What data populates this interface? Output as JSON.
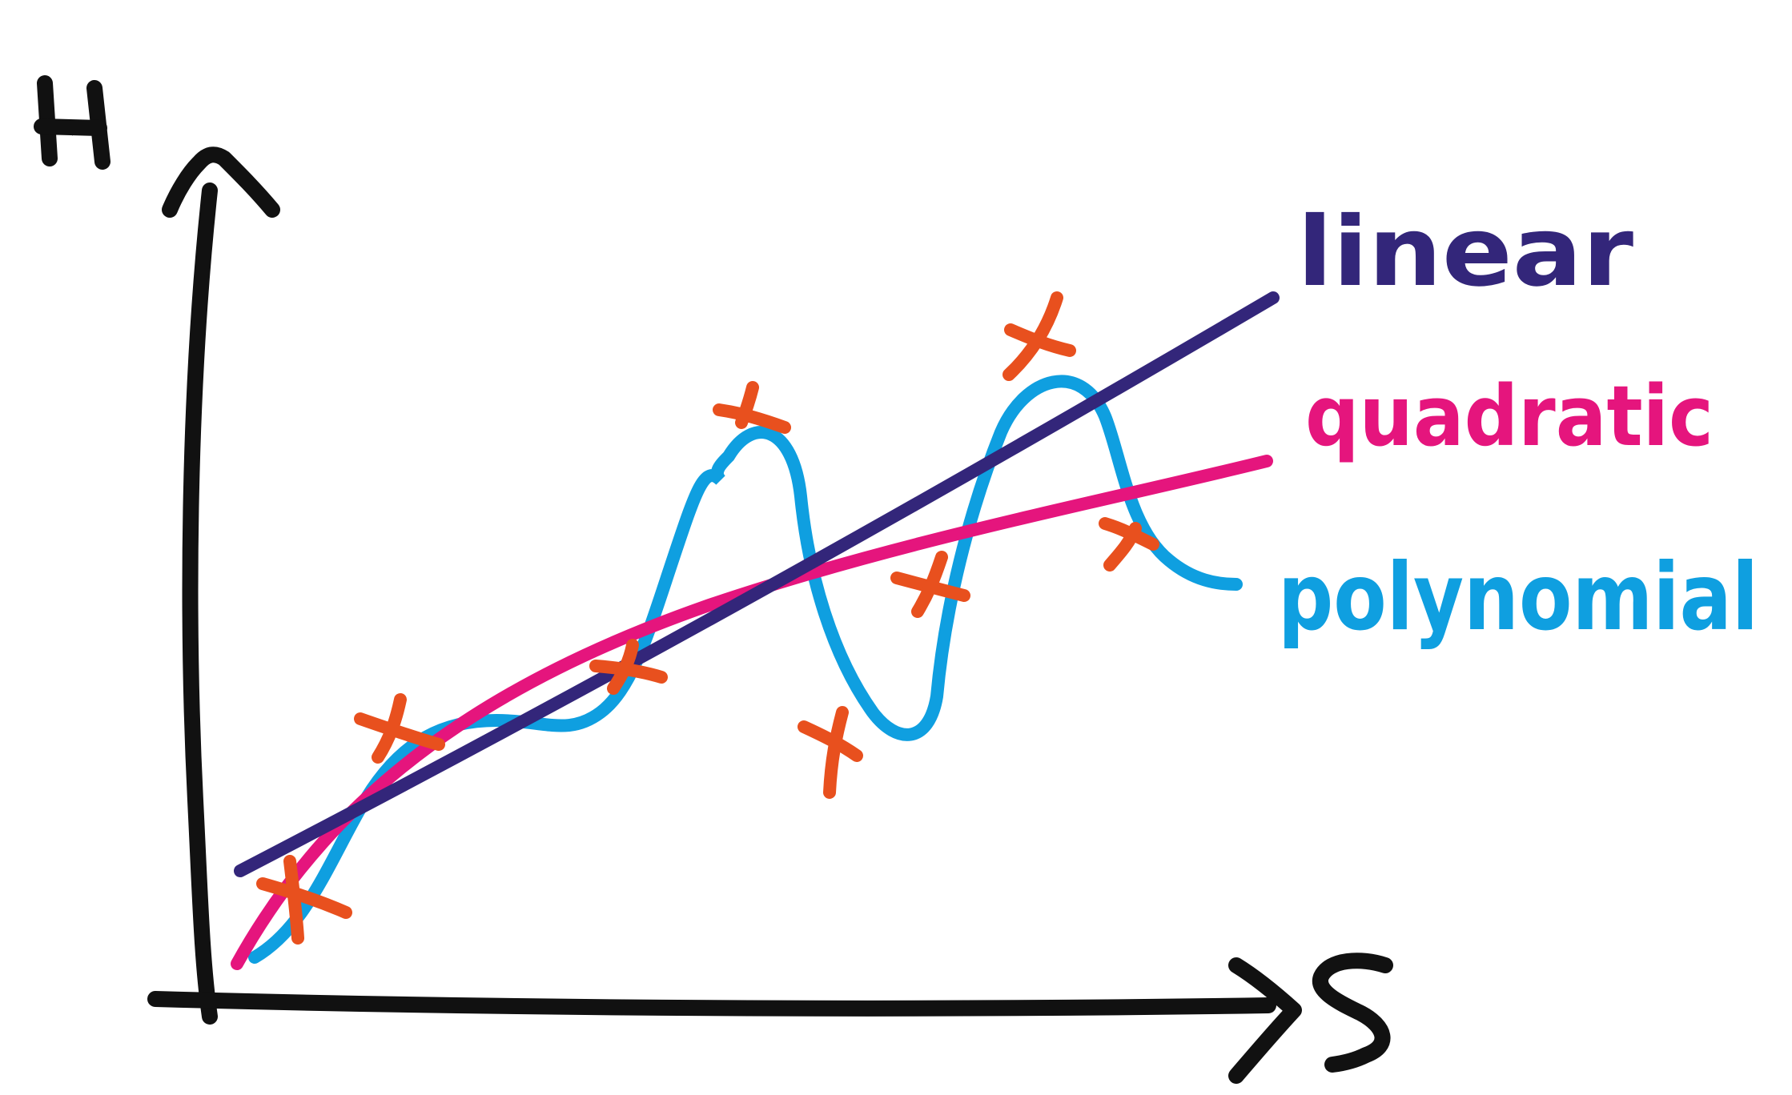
{
  "axes": {
    "y_label": "H",
    "x_label": "S"
  },
  "colors": {
    "axis": "#111111",
    "points": "#E8501E",
    "linear": "#33267A",
    "quadratic": "#E5157D",
    "polynomial": "#0F9FE0"
  },
  "legend": {
    "linear": "linear",
    "quadratic": "quadratic",
    "polynomial": "polynomial"
  }
}
